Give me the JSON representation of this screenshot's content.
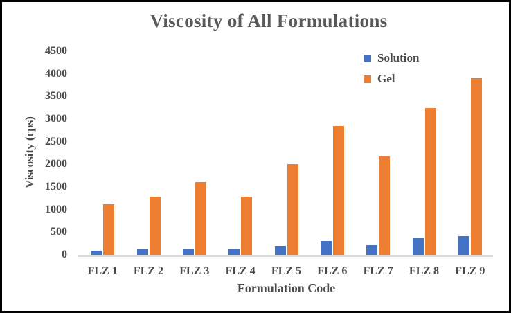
{
  "figure": {
    "background": "#ffffff",
    "border_color": "#000000"
  },
  "chart_data": {
    "type": "bar",
    "title": "Viscosity of All Formulations",
    "xlabel": "Formulation Code",
    "ylabel": "Viscosity (cps)",
    "categories": [
      "FLZ 1",
      "FLZ 2",
      "FLZ 3",
      "FLZ 4",
      "FLZ 5",
      "FLZ 6",
      "FLZ 7",
      "FLZ 8",
      "FLZ 9"
    ],
    "series": [
      {
        "name": "Solution",
        "color": "#4472C4",
        "values": [
          90,
          125,
          140,
          120,
          200,
          300,
          220,
          375,
          420
        ]
      },
      {
        "name": "Gel",
        "color": "#ED7D31",
        "values": [
          1120,
          1280,
          1600,
          1280,
          2000,
          2850,
          2170,
          3250,
          3900
        ]
      }
    ],
    "ylim": [
      0,
      4500
    ],
    "yticks": [
      0,
      500,
      1000,
      1500,
      2000,
      2500,
      3000,
      3500,
      4000,
      4500
    ],
    "grid": false,
    "legend_position": "upper-right-inside",
    "axis_line_color": "#d9d9d9",
    "title_color": "#595959",
    "text_color": "#4a4a4a"
  }
}
